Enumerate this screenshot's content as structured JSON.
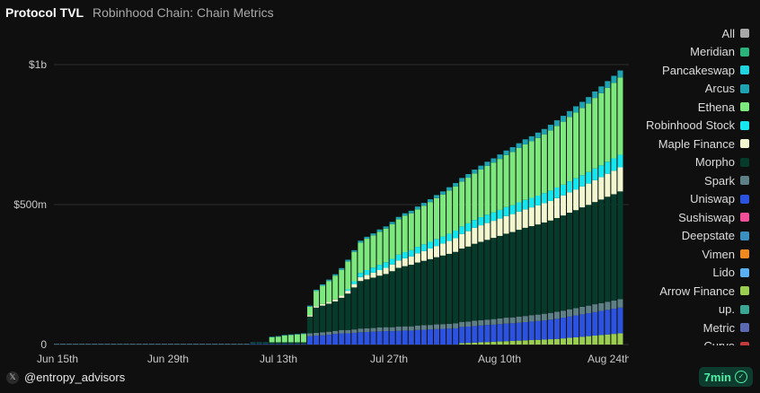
{
  "header": {
    "title": "Protocol TVL",
    "subtitle": "Robinhood Chain: Chain Metrics"
  },
  "footer": {
    "handle": "@entropy_advisors",
    "badge": "7min"
  },
  "icons": {
    "brand": "x-logo-icon",
    "badge": "check-circle-icon"
  },
  "chart_data": {
    "type": "bar",
    "stacked": true,
    "x_ticks": [
      "Jun 15th",
      "Jun 29th",
      "Jul 13th",
      "Jul 27th",
      "Aug 10th",
      "Aug 24th"
    ],
    "y_ticks": [
      "0",
      "$500m",
      "$1b"
    ],
    "ylim": [
      0,
      1100000000
    ],
    "grid": true,
    "legend_position": "right",
    "legend": [
      {
        "name": "All",
        "color": "#a8a8a8"
      },
      {
        "name": "Meridian",
        "color": "#2bb37b"
      },
      {
        "name": "Pancakeswap",
        "color": "#22d3e0"
      },
      {
        "name": "Arcus",
        "color": "#1ea3b3"
      },
      {
        "name": "Ethena",
        "color": "#7de87d"
      },
      {
        "name": "Robinhood Stock",
        "color": "#15e6f0"
      },
      {
        "name": "Maple Finance",
        "color": "#f3f7cf"
      },
      {
        "name": "Morpho",
        "color": "#063b2b"
      },
      {
        "name": "Spark",
        "color": "#5f7f87"
      },
      {
        "name": "Uniswap",
        "color": "#2b53e0"
      },
      {
        "name": "Sushiswap",
        "color": "#f0509a"
      },
      {
        "name": "Deepstate",
        "color": "#3a8fc0"
      },
      {
        "name": "Vimen",
        "color": "#f08a20"
      },
      {
        "name": "Lido",
        "color": "#5ab0f0"
      },
      {
        "name": "Arrow Finance",
        "color": "#9acd50"
      },
      {
        "name": "up.",
        "color": "#3aa593"
      },
      {
        "name": "Metric",
        "color": "#5b6ab0"
      },
      {
        "name": "Curve",
        "color": "#c23c3c"
      }
    ],
    "stack_order": [
      "Arrow Finance",
      "Uniswap",
      "Spark",
      "Morpho",
      "Maple Finance",
      "Robinhood Stock",
      "Ethena",
      "Arcus"
    ],
    "series": [
      {
        "name": "Arrow Finance",
        "values": [
          0,
          0,
          0,
          0,
          0,
          0,
          0,
          0,
          0,
          0,
          0,
          0,
          0,
          0,
          0,
          0,
          0,
          0,
          0,
          0,
          0,
          0,
          0,
          0,
          0,
          0,
          0,
          0,
          0,
          0,
          0,
          0,
          0,
          0,
          0,
          0,
          0,
          0,
          0,
          0,
          0,
          0,
          0,
          0,
          0,
          0,
          0,
          0,
          0,
          0,
          0,
          0,
          0,
          0,
          0,
          0,
          0,
          0,
          0,
          0,
          0,
          0,
          0,
          0,
          5,
          6,
          7,
          8,
          9,
          10,
          11,
          12,
          13,
          14,
          15,
          16,
          17,
          18,
          19,
          20,
          22,
          24,
          26,
          28,
          30,
          32,
          34,
          36,
          38,
          40
        ]
      },
      {
        "name": "Uniswap",
        "values": [
          0,
          0,
          0,
          0,
          0,
          0,
          0,
          0,
          0,
          0,
          0,
          0,
          0,
          0,
          0,
          0,
          0,
          0,
          0,
          0,
          0,
          0,
          0,
          0,
          0,
          0,
          0,
          0,
          0,
          0,
          0,
          2,
          2,
          2,
          2,
          2,
          2,
          2,
          2,
          2,
          30,
          32,
          33,
          35,
          38,
          40,
          40,
          42,
          44,
          45,
          46,
          47,
          48,
          48,
          49,
          50,
          50,
          52,
          53,
          54,
          55,
          56,
          57,
          58,
          58,
          58,
          59,
          60,
          61,
          61,
          62,
          63,
          63,
          64,
          65,
          66,
          67,
          68,
          70,
          72,
          74,
          76,
          78,
          80,
          82,
          84,
          86,
          88,
          90,
          92
        ]
      },
      {
        "name": "Spark",
        "values": [
          0,
          0,
          0,
          0,
          0,
          0,
          0,
          0,
          0,
          0,
          0,
          0,
          0,
          0,
          0,
          0,
          0,
          0,
          0,
          0,
          0,
          0,
          0,
          0,
          0,
          0,
          0,
          0,
          0,
          0,
          0,
          0,
          0,
          0,
          0,
          0,
          0,
          0,
          0,
          0,
          10,
          10,
          11,
          11,
          11,
          12,
          12,
          12,
          13,
          13,
          13,
          14,
          14,
          14,
          15,
          15,
          15,
          16,
          16,
          16,
          17,
          17,
          17,
          18,
          18,
          18,
          19,
          19,
          19,
          20,
          20,
          21,
          21,
          22,
          22,
          23,
          23,
          24,
          24,
          25,
          25,
          26,
          26,
          27,
          27,
          28,
          28,
          29,
          29,
          30
        ]
      },
      {
        "name": "Morpho",
        "values": [
          0,
          0,
          0,
          0,
          0,
          0,
          0,
          0,
          0,
          0,
          0,
          0,
          0,
          0,
          0,
          0,
          0,
          0,
          0,
          0,
          0,
          0,
          0,
          0,
          0,
          0,
          0,
          0,
          0,
          0,
          0,
          5,
          5,
          5,
          6,
          6,
          6,
          6,
          6,
          6,
          60,
          90,
          95,
          100,
          105,
          115,
          130,
          150,
          170,
          175,
          180,
          185,
          190,
          200,
          210,
          215,
          220,
          225,
          230,
          235,
          240,
          245,
          250,
          255,
          262,
          268,
          275,
          280,
          285,
          290,
          295,
          300,
          305,
          310,
          315,
          318,
          322,
          326,
          330,
          335,
          340,
          345,
          350,
          355,
          360,
          365,
          370,
          375,
          380,
          385
        ]
      },
      {
        "name": "Maple Finance",
        "values": [
          0,
          0,
          0,
          0,
          0,
          0,
          0,
          0,
          0,
          0,
          0,
          0,
          0,
          0,
          0,
          0,
          0,
          0,
          0,
          0,
          0,
          0,
          0,
          0,
          0,
          0,
          0,
          0,
          0,
          0,
          0,
          0,
          0,
          0,
          0,
          0,
          0,
          0,
          0,
          0,
          5,
          5,
          6,
          6,
          7,
          8,
          10,
          12,
          14,
          16,
          18,
          20,
          22,
          24,
          26,
          28,
          30,
          33,
          35,
          38,
          40,
          43,
          46,
          49,
          52,
          55,
          57,
          59,
          60,
          61,
          62,
          63,
          64,
          65,
          66,
          67,
          68,
          69,
          70,
          71,
          72,
          73,
          74,
          75,
          76,
          78,
          80,
          82,
          84,
          86
        ]
      },
      {
        "name": "Robinhood Stock",
        "values": [
          0,
          0,
          0,
          0,
          0,
          0,
          0,
          0,
          0,
          0,
          0,
          0,
          0,
          0,
          0,
          0,
          0,
          0,
          0,
          0,
          0,
          0,
          0,
          0,
          0,
          0,
          0,
          0,
          0,
          0,
          0,
          0,
          0,
          0,
          0,
          0,
          0,
          0,
          0,
          0,
          0,
          0,
          0,
          0,
          0,
          0,
          5,
          10,
          15,
          17,
          18,
          19,
          20,
          20,
          21,
          22,
          22,
          23,
          24,
          24,
          25,
          25,
          26,
          27,
          27,
          28,
          28,
          29,
          30,
          30,
          31,
          32,
          32,
          33,
          34,
          34,
          35,
          36,
          37,
          38,
          38,
          39,
          40,
          40,
          41,
          42,
          42,
          43,
          44,
          45
        ]
      },
      {
        "name": "Ethena",
        "values": [
          0,
          0,
          0,
          0,
          0,
          0,
          0,
          0,
          0,
          0,
          0,
          0,
          0,
          0,
          0,
          0,
          0,
          0,
          0,
          0,
          0,
          0,
          0,
          0,
          0,
          0,
          0,
          0,
          0,
          0,
          0,
          0,
          0,
          0,
          18,
          20,
          24,
          26,
          28,
          30,
          30,
          55,
          65,
          75,
          85,
          92,
          100,
          105,
          108,
          112,
          115,
          118,
          120,
          124,
          126,
          130,
          132,
          134,
          138,
          142,
          146,
          150,
          154,
          158,
          160,
          163,
          166,
          170,
          174,
          178,
          182,
          186,
          190,
          194,
          198,
          202,
          206,
          210,
          215,
          220,
          225,
          230,
          235,
          240,
          245,
          252,
          258,
          264,
          270,
          276
        ]
      },
      {
        "name": "Arcus",
        "values": [
          0,
          0,
          0,
          0,
          0,
          0,
          0,
          0,
          0,
          0,
          0,
          0,
          0,
          0,
          0,
          0,
          0,
          0,
          0,
          0,
          0,
          0,
          0,
          0,
          0,
          0,
          0,
          0,
          0,
          0,
          0,
          1,
          1,
          1,
          2,
          2,
          2,
          2,
          2,
          2,
          4,
          4,
          5,
          5,
          5,
          6,
          6,
          6,
          7,
          7,
          7,
          8,
          8,
          8,
          9,
          9,
          9,
          10,
          10,
          10,
          11,
          11,
          12,
          12,
          13,
          13,
          14,
          14,
          15,
          15,
          16,
          16,
          17,
          17,
          18,
          18,
          19,
          19,
          20,
          20,
          21,
          21,
          22,
          22,
          23,
          23,
          24,
          24,
          25,
          25
        ]
      }
    ],
    "value_unit": "millions USD"
  }
}
